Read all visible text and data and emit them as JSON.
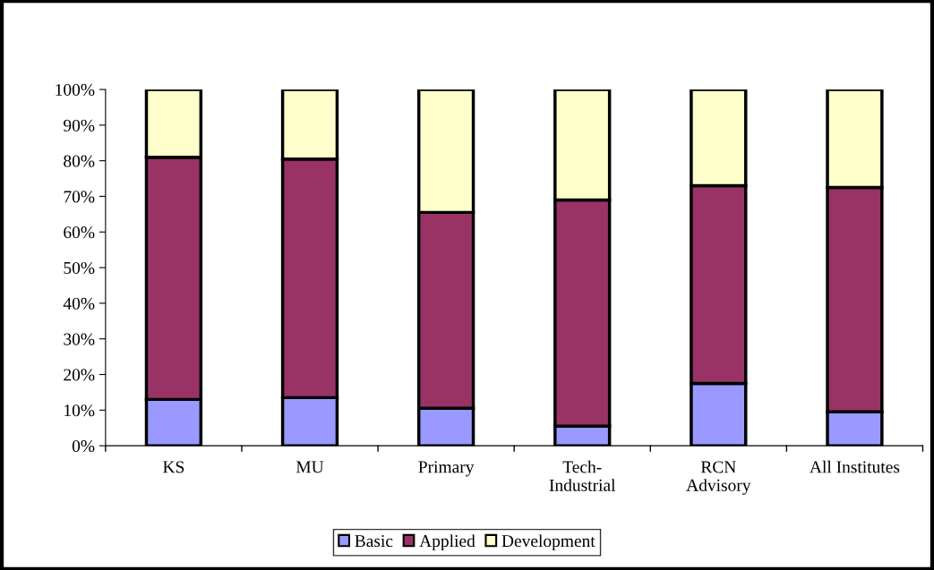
{
  "chart_data": {
    "type": "bar",
    "stacked": true,
    "categories": [
      "KS",
      "MU",
      "Primary",
      "Tech-\nIndustrial",
      "RCN\nAdvisory",
      "All Institutes"
    ],
    "series": [
      {
        "name": "Basic",
        "color": "#9999ff",
        "values": [
          13,
          13.5,
          10.5,
          5.5,
          17.5,
          9.5
        ]
      },
      {
        "name": "Applied",
        "color": "#993366",
        "values": [
          68,
          67,
          55,
          63.5,
          55.5,
          63
        ]
      },
      {
        "name": "Development",
        "color": "#ffffcc",
        "values": [
          19,
          19.5,
          34.5,
          31,
          27,
          27.5
        ]
      }
    ],
    "ylim": [
      0,
      100
    ],
    "yticks": [
      {
        "value": 0,
        "label": "0%"
      },
      {
        "value": 10,
        "label": "10%"
      },
      {
        "value": 20,
        "label": "20%"
      },
      {
        "value": 30,
        "label": "30%"
      },
      {
        "value": 40,
        "label": "40%"
      },
      {
        "value": 50,
        "label": "50%"
      },
      {
        "value": 60,
        "label": "60%"
      },
      {
        "value": 70,
        "label": "70%"
      },
      {
        "value": 80,
        "label": "80%"
      },
      {
        "value": 90,
        "label": "90%"
      },
      {
        "value": 100,
        "label": "100%"
      }
    ],
    "legend": "bottom",
    "grid": false
  }
}
